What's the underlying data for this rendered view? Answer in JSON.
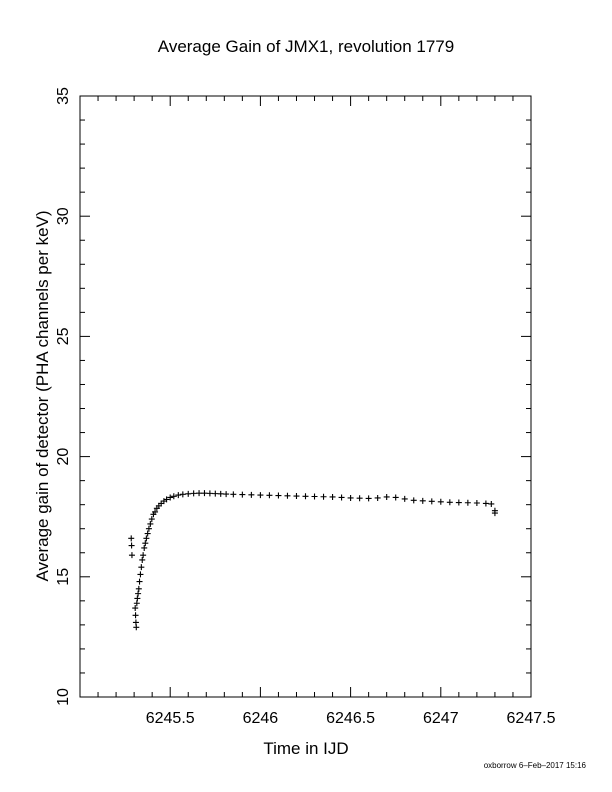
{
  "chart_data": {
    "type": "scatter",
    "title": "Average Gain of JMX1, revolution 1779",
    "xlabel": "Time in IJD",
    "ylabel": "Average gain of detector (PHA channels per keV)",
    "xlim": [
      6245.0,
      6247.5
    ],
    "ylim": [
      10,
      35
    ],
    "x_ticks": [
      6245.5,
      6246,
      6246.5,
      6247,
      6247.5
    ],
    "x_tick_labels": [
      "6245.5",
      "6246",
      "6246.5",
      "6247",
      "6247.5"
    ],
    "y_ticks": [
      10,
      15,
      20,
      25,
      30,
      35
    ],
    "y_tick_labels": [
      "10",
      "15",
      "20",
      "25",
      "30",
      "35"
    ],
    "marker": "plus",
    "grid": false,
    "series": [
      {
        "x": [
          6245.284,
          6245.286,
          6245.288,
          6245.306,
          6245.308,
          6245.31,
          6245.312,
          6245.315,
          6245.318,
          6245.322,
          6245.326,
          6245.33,
          6245.335,
          6245.34,
          6245.345,
          6245.35,
          6245.356,
          6245.362,
          6245.368,
          6245.375,
          6245.382,
          6245.39,
          6245.398,
          6245.407,
          6245.416,
          6245.426,
          6245.437,
          6245.45,
          6245.465,
          6245.48,
          6245.5,
          6245.52,
          6245.545,
          6245.57,
          6245.6,
          6245.63,
          6245.66,
          6245.69,
          6245.72,
          6245.75,
          6245.78,
          6245.81,
          6245.85,
          6245.9,
          6245.95,
          6246.0,
          6246.05,
          6246.1,
          6246.15,
          6246.2,
          6246.25,
          6246.3,
          6246.35,
          6246.4,
          6246.45,
          6246.5,
          6246.55,
          6246.6,
          6246.65,
          6246.7,
          6246.75,
          6246.8,
          6246.85,
          6246.9,
          6246.95,
          6247.0,
          6247.05,
          6247.1,
          6247.15,
          6247.2,
          6247.25,
          6247.28,
          6247.3,
          6247.3
        ],
        "y": [
          16.6,
          16.3,
          15.9,
          13.7,
          13.4,
          13.1,
          12.9,
          13.9,
          14.1,
          14.3,
          14.5,
          14.8,
          15.1,
          15.4,
          15.7,
          15.9,
          16.2,
          16.4,
          16.6,
          16.8,
          17.0,
          17.2,
          17.4,
          17.6,
          17.7,
          17.85,
          17.95,
          18.05,
          18.15,
          18.22,
          18.3,
          18.35,
          18.4,
          18.43,
          18.45,
          18.47,
          18.48,
          18.48,
          18.47,
          18.46,
          18.45,
          18.44,
          18.43,
          18.42,
          18.41,
          18.4,
          18.39,
          18.38,
          18.37,
          18.36,
          18.35,
          18.34,
          18.33,
          18.32,
          18.3,
          18.28,
          18.27,
          18.26,
          18.28,
          18.32,
          18.3,
          18.24,
          18.18,
          18.16,
          18.14,
          18.12,
          18.1,
          18.09,
          18.08,
          18.07,
          18.05,
          18.03,
          17.75,
          17.65
        ]
      }
    ]
  },
  "footer": "oxborrow  6–Feb–2017 15:16"
}
